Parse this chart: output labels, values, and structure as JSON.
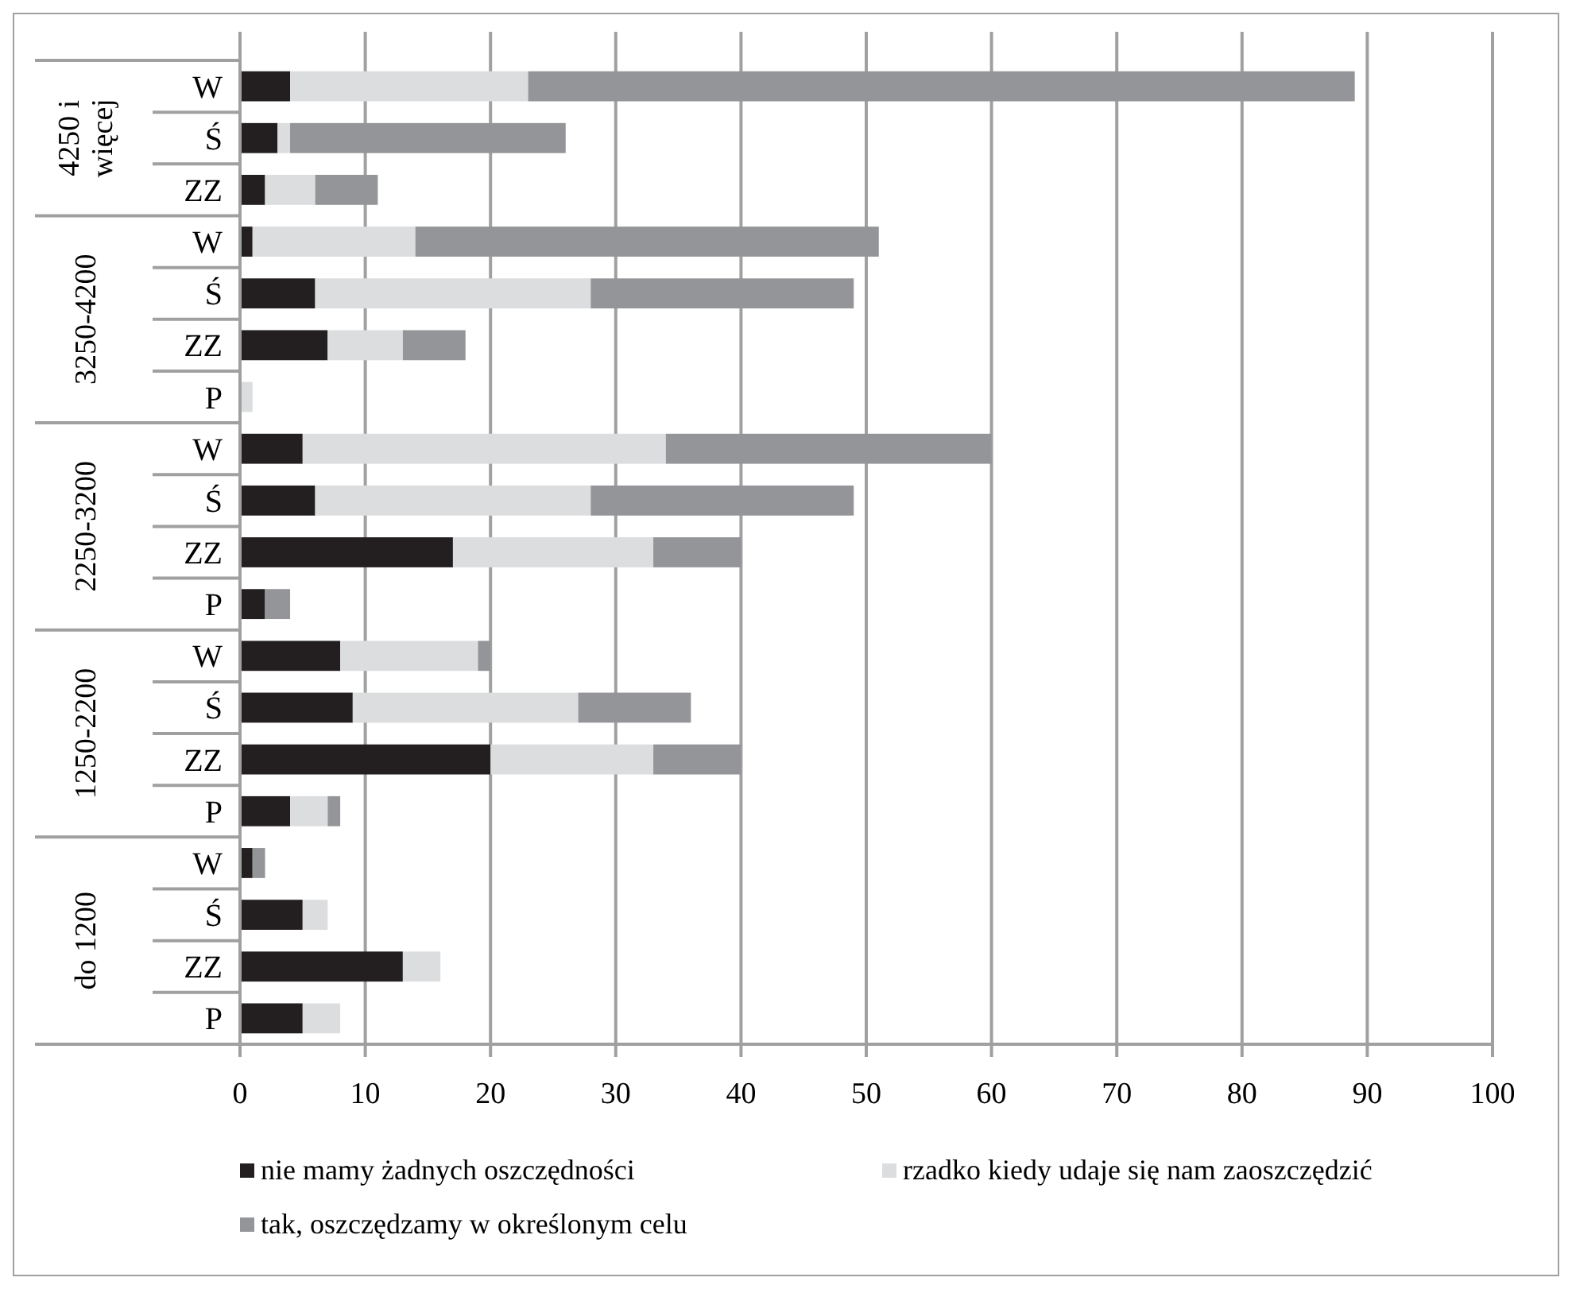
{
  "chart_data": {
    "type": "bar",
    "orientation": "horizontal",
    "stacked": true,
    "categories": [
      "W",
      "Ś",
      "ZZ",
      "W",
      "Ś",
      "ZZ",
      "P",
      "W",
      "Ś",
      "ZZ",
      "P",
      "W",
      "Ś",
      "ZZ",
      "P",
      "W",
      "Ś",
      "ZZ",
      "P"
    ],
    "series": [
      {
        "name": "nie mamy żadnych oszczędności",
        "color": "#231f20",
        "values": [
          4,
          3,
          2,
          1,
          6,
          7,
          0,
          5,
          6,
          17,
          2,
          8,
          9,
          20,
          4,
          1,
          5,
          13,
          5
        ]
      },
      {
        "name": "rzadko kiedy udaje się nam zaoszczędzić",
        "color": "#dcdddf",
        "values": [
          19,
          1,
          4,
          13,
          22,
          6,
          1,
          29,
          22,
          16,
          0,
          11,
          18,
          13,
          3,
          0,
          2,
          3,
          3
        ]
      },
      {
        "name": "tak, oszczędzamy w określonym celu",
        "color": "#939598",
        "values": [
          66,
          22,
          5,
          37,
          21,
          5,
          0,
          26,
          21,
          7,
          2,
          1,
          9,
          7,
          1,
          1,
          0,
          0,
          0
        ]
      }
    ],
    "annotations": [
      "4250 i więcej",
      "3250-4200",
      "2250-3200",
      "1250-2200",
      "do 1200"
    ],
    "xlim": [
      0,
      100
    ],
    "xticks": [
      0,
      10,
      20,
      30,
      40,
      50,
      60,
      70,
      80,
      90,
      100
    ],
    "grid": "x",
    "legend": "bottom"
  }
}
